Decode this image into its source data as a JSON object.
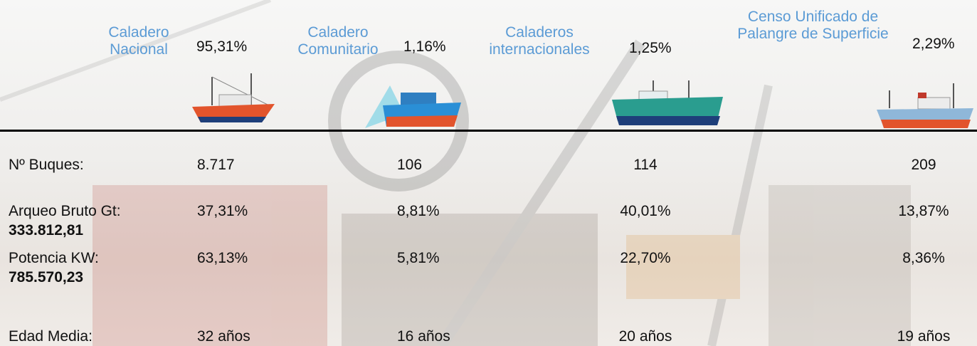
{
  "header": {
    "columns": [
      {
        "name": "Caladero Nacional",
        "share": "95,31%"
      },
      {
        "name": "Caladero Comunitario",
        "share": "1,16%"
      },
      {
        "name": "Caladeros internacionales",
        "share": "1,25%"
      },
      {
        "name": "Censo Unificado de Palangre de Superficie",
        "share": "2,29%"
      }
    ]
  },
  "table": {
    "rows": [
      {
        "label": "Nº Buques:",
        "values": [
          "8.717",
          "106",
          "114",
          "209"
        ]
      },
      {
        "label": "Arqueo Bruto Gt:",
        "total": "333.812,81",
        "values": [
          "37,31%",
          "8,81%",
          "40,01%",
          "13,87%"
        ]
      },
      {
        "label": "Potencia KW:",
        "total": "785.570,23",
        "values": [
          "63,13%",
          "5,81%",
          "22,70%",
          "8,36%"
        ]
      },
      {
        "label": "Edad Media:",
        "values": [
          "32 años",
          "16 años",
          "20 años",
          "19 años"
        ]
      }
    ]
  }
}
